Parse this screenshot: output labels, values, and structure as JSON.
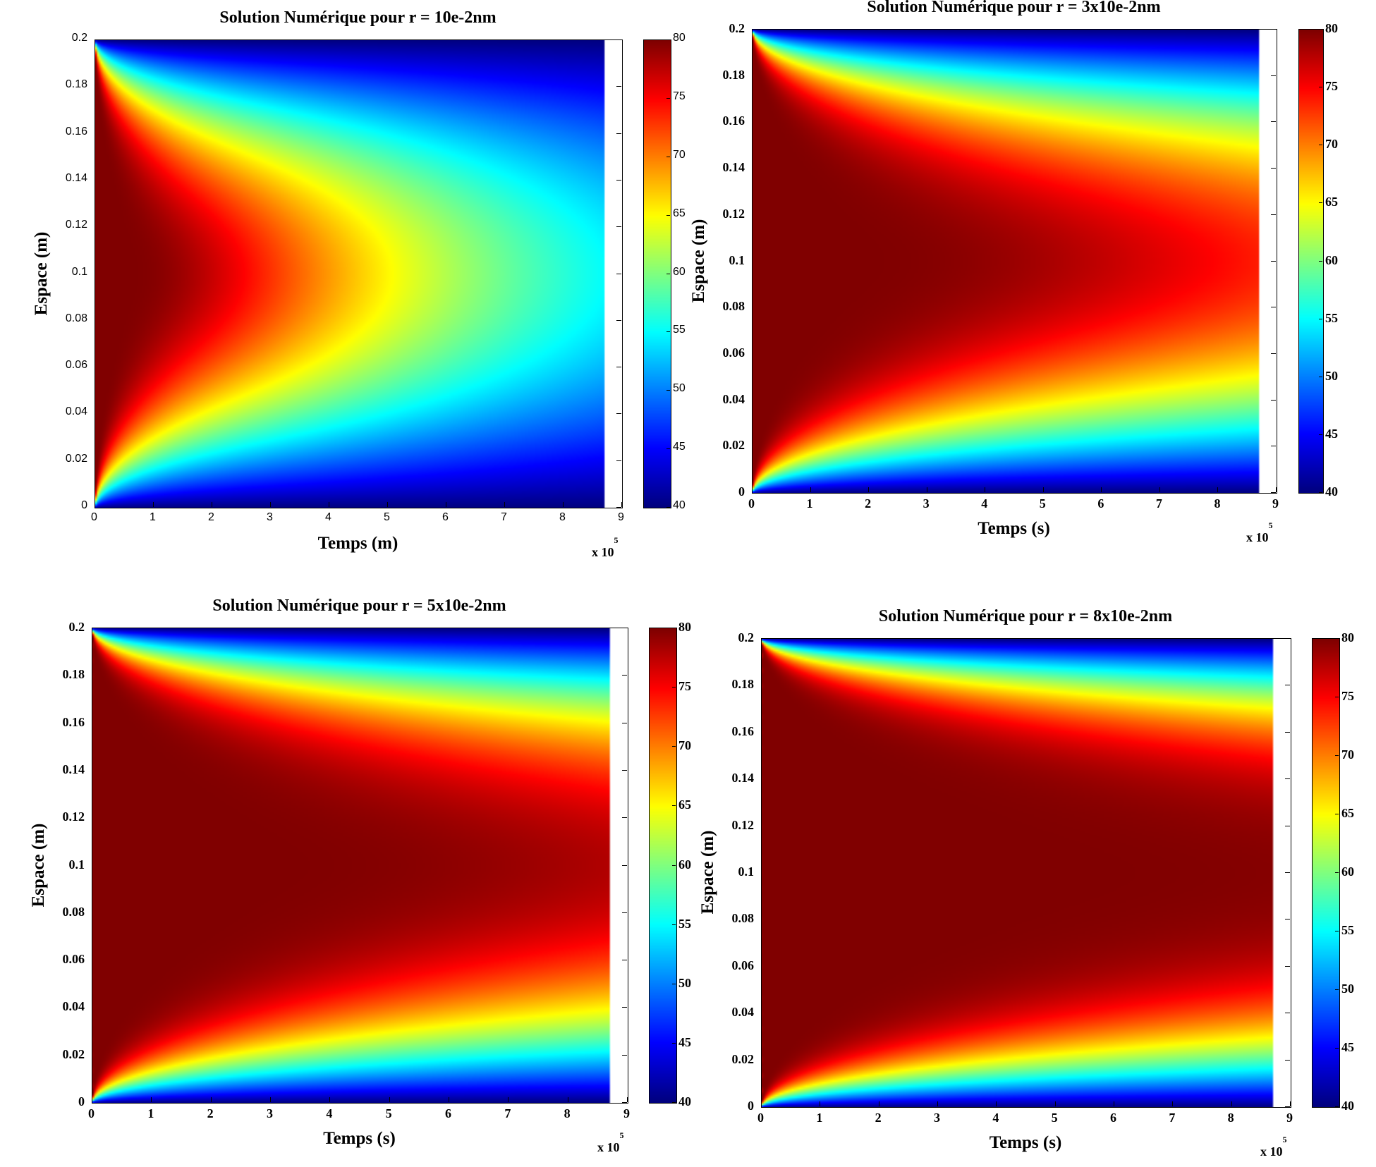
{
  "chart_data": [
    {
      "type": "heatmap",
      "title": "Solution Numérique pour r = 10e-2nm",
      "xlabel": "Temps (m)",
      "ylabel": "Espace (m)",
      "x_multiplier": "x 10",
      "x_exponent": "5",
      "xlim": [
        0,
        9
      ],
      "data_xmax": 8.7,
      "ylim": [
        0,
        0.2
      ],
      "clim": [
        40,
        80
      ],
      "xticks": [
        "0",
        "1",
        "2",
        "3",
        "4",
        "5",
        "6",
        "7",
        "8",
        "9"
      ],
      "yticks": [
        "0",
        "0.02",
        "0.04",
        "0.06",
        "0.08",
        "0.1",
        "0.12",
        "0.14",
        "0.16",
        "0.18",
        "0.2"
      ],
      "cticks": [
        "40",
        "45",
        "50",
        "55",
        "60",
        "65",
        "70",
        "75",
        "80"
      ],
      "colormap": "jet",
      "initial_value": 80,
      "boundary_value": 40,
      "center_value_at_end": 55
    },
    {
      "type": "heatmap",
      "title": "Solution Numérique pour r = 3x10e-2nm",
      "xlabel": "Temps (s)",
      "ylabel": "Espace (m)",
      "x_multiplier": "x 10",
      "x_exponent": "5",
      "xlim": [
        0,
        9
      ],
      "data_xmax": 8.7,
      "ylim": [
        0,
        0.2
      ],
      "clim": [
        40,
        80
      ],
      "xticks": [
        "0",
        "1",
        "2",
        "3",
        "4",
        "5",
        "6",
        "7",
        "8",
        "9"
      ],
      "yticks": [
        "0",
        "0.02",
        "0.04",
        "0.06",
        "0.08",
        "0.1",
        "0.12",
        "0.14",
        "0.16",
        "0.18",
        "0.2"
      ],
      "cticks": [
        "40",
        "45",
        "50",
        "55",
        "60",
        "65",
        "70",
        "75",
        "80"
      ],
      "colormap": "jet",
      "initial_value": 80,
      "boundary_value": 40,
      "center_value_at_end": 73
    },
    {
      "type": "heatmap",
      "title": "Solution Numérique pour r = 5x10e-2nm",
      "xlabel": "Temps (s)",
      "ylabel": "Espace (m)",
      "x_multiplier": "x 10",
      "x_exponent": "5",
      "xlim": [
        0,
        9
      ],
      "data_xmax": 8.7,
      "ylim": [
        0,
        0.2
      ],
      "clim": [
        40,
        80
      ],
      "xticks": [
        "0",
        "1",
        "2",
        "3",
        "4",
        "5",
        "6",
        "7",
        "8",
        "9"
      ],
      "yticks": [
        "0",
        "0.02",
        "0.04",
        "0.06",
        "0.08",
        "0.1",
        "0.12",
        "0.14",
        "0.16",
        "0.18",
        "0.2"
      ],
      "cticks": [
        "40",
        "45",
        "50",
        "55",
        "60",
        "65",
        "70",
        "75",
        "80"
      ],
      "colormap": "jet",
      "initial_value": 80,
      "boundary_value": 40,
      "center_value_at_end": 76
    },
    {
      "type": "heatmap",
      "title": "Solution Numérique pour r = 8x10e-2nm",
      "xlabel": "Temps (s)",
      "ylabel": "Espace (m)",
      "x_multiplier": "x 10",
      "x_exponent": "5",
      "xlim": [
        0,
        9
      ],
      "data_xmax": 8.7,
      "ylim": [
        0,
        0.2
      ],
      "clim": [
        40,
        80
      ],
      "xticks": [
        "0",
        "1",
        "2",
        "3",
        "4",
        "5",
        "6",
        "7",
        "8",
        "9"
      ],
      "yticks": [
        "0",
        "0.02",
        "0.04",
        "0.06",
        "0.08",
        "0.1",
        "0.12",
        "0.14",
        "0.16",
        "0.18",
        "0.2"
      ],
      "cticks": [
        "40",
        "45",
        "50",
        "55",
        "60",
        "65",
        "70",
        "75",
        "80"
      ],
      "colormap": "jet",
      "initial_value": 80,
      "boundary_value": 40,
      "center_value_at_end": 79
    }
  ]
}
